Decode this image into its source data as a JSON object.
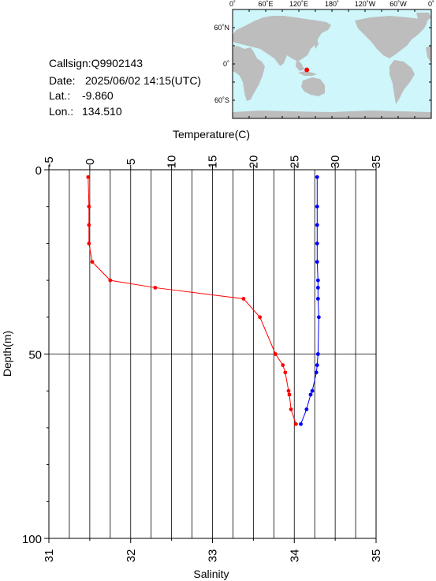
{
  "header": {
    "callsign_label": "Callsign:",
    "callsign": "Q9902143",
    "date_label": "Date:",
    "date": "2025/06/02 14:15(UTC)",
    "lat_label": "Lat.:",
    "lat": "-9.860",
    "lon_label": "Lon.:",
    "lon": "134.510"
  },
  "map": {
    "top_labels": [
      "0˚",
      "60˚E",
      "120˚E",
      "180˚",
      "120˚W",
      "60˚W",
      "0˚"
    ],
    "left_labels": [
      "60˚N",
      "0˚",
      "60˚S"
    ],
    "ocean_color": "#cef6fb",
    "land_color": "#bdbdbd",
    "marker_color": "#ff0000",
    "marker": {
      "lon": 134.51,
      "lat": -9.86
    }
  },
  "chart_data": {
    "type": "line",
    "y_label": "Depth(m)",
    "y_ticks": [
      "0",
      "50",
      "100"
    ],
    "ylim": [
      0,
      100
    ],
    "y_inverted": true,
    "top_axis": {
      "label": "Temperature(C)",
      "ticks": [
        "-5",
        "0",
        "5",
        "10",
        "15",
        "20",
        "25",
        "30",
        "35"
      ],
      "lim": [
        -5,
        35
      ]
    },
    "bottom_axis": {
      "label": "Salinity",
      "ticks": [
        "31",
        "32",
        "33",
        "34",
        "35"
      ],
      "lim": [
        31,
        35
      ]
    },
    "series": [
      {
        "axis": "temperature",
        "color": "#ff0000",
        "points": [
          {
            "x": -0.2,
            "depth": 2
          },
          {
            "x": -0.1,
            "depth": 10
          },
          {
            "x": -0.1,
            "depth": 15
          },
          {
            "x": -0.1,
            "depth": 20
          },
          {
            "x": 0.3,
            "depth": 25
          },
          {
            "x": 2.5,
            "depth": 30
          },
          {
            "x": 8.0,
            "depth": 32
          },
          {
            "x": 18.8,
            "depth": 35
          },
          {
            "x": 20.8,
            "depth": 40
          },
          {
            "x": 22.7,
            "depth": 50
          },
          {
            "x": 23.6,
            "depth": 53
          },
          {
            "x": 23.9,
            "depth": 55
          },
          {
            "x": 24.3,
            "depth": 60
          },
          {
            "x": 24.4,
            "depth": 61
          },
          {
            "x": 24.6,
            "depth": 65
          },
          {
            "x": 25.2,
            "depth": 69
          }
        ]
      },
      {
        "axis": "salinity",
        "color": "#0000ff",
        "points": [
          {
            "x": 34.28,
            "depth": 2
          },
          {
            "x": 34.28,
            "depth": 10
          },
          {
            "x": 34.28,
            "depth": 15
          },
          {
            "x": 34.28,
            "depth": 20
          },
          {
            "x": 34.28,
            "depth": 25
          },
          {
            "x": 34.29,
            "depth": 30
          },
          {
            "x": 34.29,
            "depth": 32
          },
          {
            "x": 34.29,
            "depth": 35
          },
          {
            "x": 34.3,
            "depth": 40
          },
          {
            "x": 34.29,
            "depth": 50
          },
          {
            "x": 34.28,
            "depth": 53
          },
          {
            "x": 34.27,
            "depth": 55
          },
          {
            "x": 34.22,
            "depth": 60
          },
          {
            "x": 34.2,
            "depth": 61
          },
          {
            "x": 34.15,
            "depth": 65
          },
          {
            "x": 34.08,
            "depth": 69
          }
        ]
      }
    ]
  }
}
